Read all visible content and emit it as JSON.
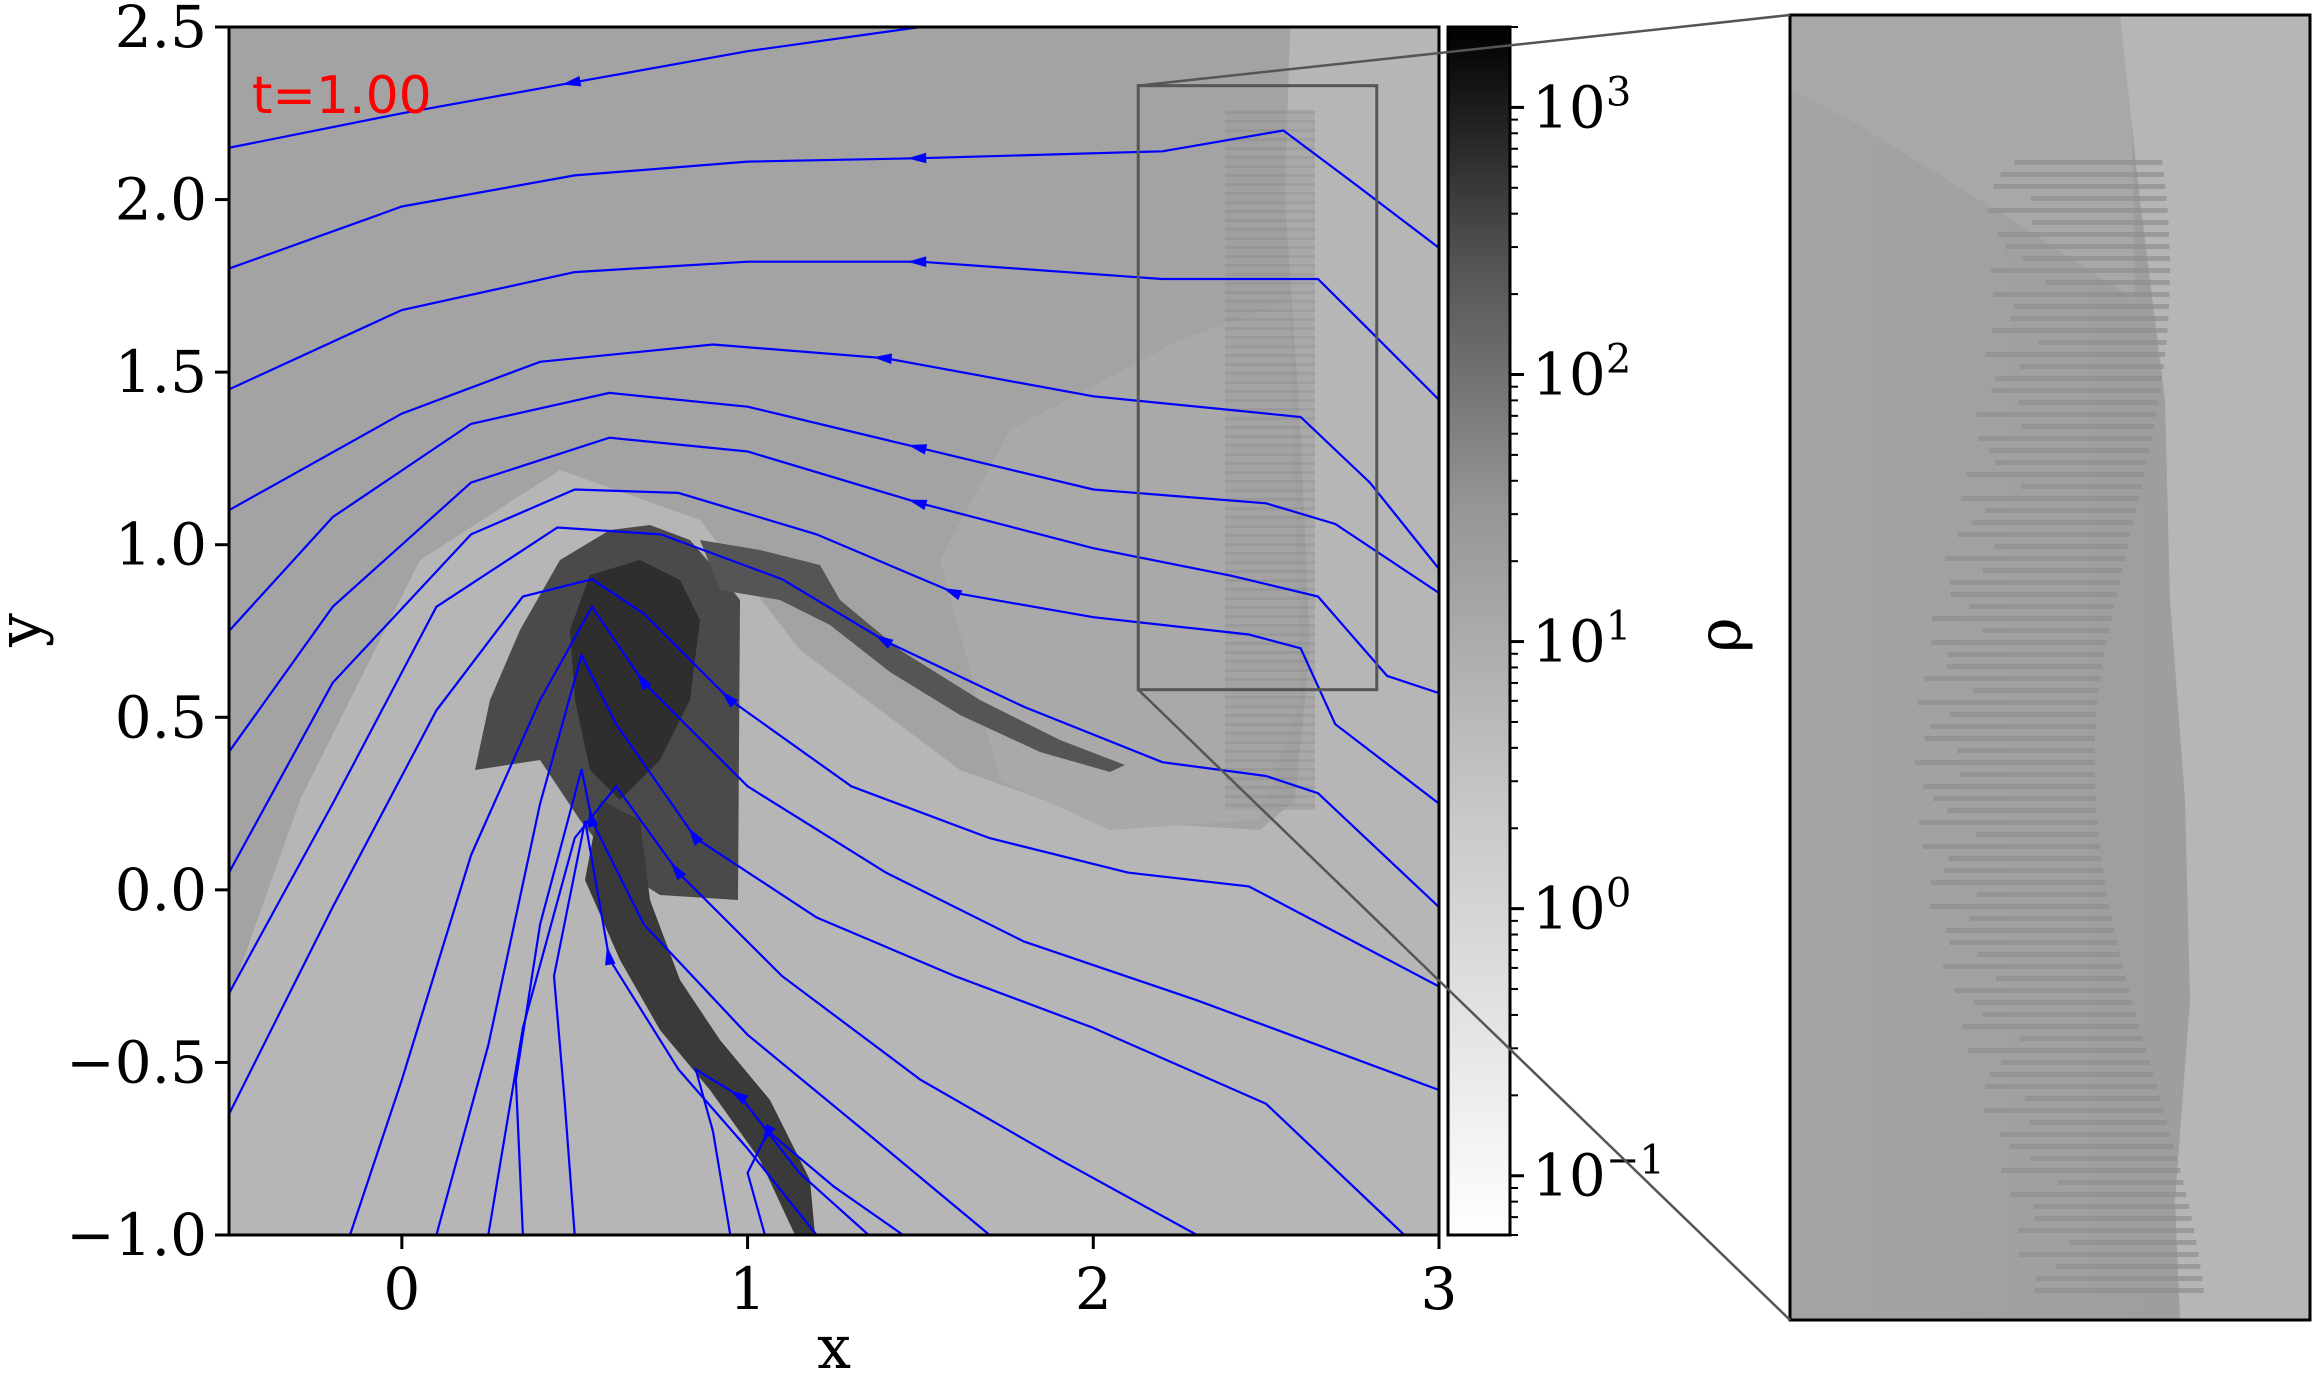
{
  "chart_data": {
    "type": "heatmap",
    "title": "",
    "time_label": "t=1.00",
    "time_label_color": "#ff0000",
    "xlabel": "x",
    "ylabel": "y",
    "xlim": [
      -0.5,
      3.0
    ],
    "ylim": [
      -1.0,
      2.5
    ],
    "xticks": [
      0,
      1,
      2,
      3
    ],
    "xtick_labels": [
      "0",
      "1",
      "2",
      "3"
    ],
    "yticks": [
      -1.0,
      -0.5,
      0.0,
      0.5,
      1.0,
      1.5,
      2.0,
      2.5
    ],
    "ytick_labels": [
      "−1.0",
      "−0.5",
      "0.0",
      "0.5",
      "1.0",
      "1.5",
      "2.0",
      "2.5"
    ],
    "colorbar": {
      "label": "ρ",
      "scale": "log",
      "range": [
        0.06,
        2000
      ],
      "ticks": [
        0.1,
        1,
        10,
        100,
        1000
      ],
      "tick_bases": [
        "10",
        "10",
        "10",
        "10",
        "10"
      ],
      "tick_exponents": [
        "−1",
        "0",
        "1",
        "2",
        "3"
      ],
      "colormap": "Greys"
    },
    "streamline_color": "#0000ff",
    "streamlines": [
      [
        [
          -0.5,
          2.15
        ],
        [
          0.0,
          2.25
        ],
        [
          0.5,
          2.34
        ],
        [
          1.0,
          2.43
        ],
        [
          1.5,
          2.5
        ]
      ],
      [
        [
          -0.5,
          1.8
        ],
        [
          0.0,
          1.98
        ],
        [
          0.5,
          2.07
        ],
        [
          1.0,
          2.11
        ],
        [
          1.5,
          2.12
        ],
        [
          2.2,
          2.14
        ],
        [
          2.55,
          2.2
        ],
        [
          2.75,
          2.05
        ],
        [
          3.0,
          1.86
        ]
      ],
      [
        [
          -0.5,
          1.45
        ],
        [
          0.0,
          1.68
        ],
        [
          0.5,
          1.79
        ],
        [
          1.0,
          1.82
        ],
        [
          1.5,
          1.82
        ],
        [
          2.2,
          1.77
        ],
        [
          2.65,
          1.77
        ],
        [
          2.8,
          1.62
        ],
        [
          3.0,
          1.42
        ]
      ],
      [
        [
          -0.5,
          1.1
        ],
        [
          0.0,
          1.38
        ],
        [
          0.4,
          1.53
        ],
        [
          0.9,
          1.58
        ],
        [
          1.4,
          1.54
        ],
        [
          2.0,
          1.43
        ],
        [
          2.6,
          1.37
        ],
        [
          2.8,
          1.18
        ],
        [
          3.0,
          0.93
        ]
      ],
      [
        [
          -0.5,
          0.75
        ],
        [
          -0.2,
          1.08
        ],
        [
          0.2,
          1.35
        ],
        [
          0.6,
          1.44
        ],
        [
          1.0,
          1.4
        ],
        [
          1.5,
          1.28
        ],
        [
          2.0,
          1.16
        ],
        [
          2.5,
          1.12
        ],
        [
          2.7,
          1.06
        ],
        [
          3.0,
          0.86
        ]
      ],
      [
        [
          -0.5,
          0.4
        ],
        [
          -0.2,
          0.82
        ],
        [
          0.2,
          1.18
        ],
        [
          0.6,
          1.31
        ],
        [
          1.0,
          1.27
        ],
        [
          1.5,
          1.12
        ],
        [
          2.0,
          0.99
        ],
        [
          2.4,
          0.91
        ],
        [
          2.65,
          0.85
        ],
        [
          2.85,
          0.62
        ],
        [
          3.0,
          0.57
        ]
      ],
      [
        [
          -0.5,
          0.05
        ],
        [
          -0.2,
          0.6
        ],
        [
          0.2,
          1.03
        ],
        [
          0.5,
          1.16
        ],
        [
          0.8,
          1.15
        ],
        [
          1.2,
          1.03
        ],
        [
          1.6,
          0.86
        ],
        [
          2.0,
          0.79
        ],
        [
          2.45,
          0.74
        ],
        [
          2.6,
          0.7
        ],
        [
          2.7,
          0.48
        ],
        [
          3.0,
          0.25
        ]
      ],
      [
        [
          -0.5,
          -0.3
        ],
        [
          -0.2,
          0.25
        ],
        [
          0.1,
          0.82
        ],
        [
          0.45,
          1.05
        ],
        [
          0.75,
          1.03
        ],
        [
          1.1,
          0.9
        ],
        [
          1.4,
          0.72
        ],
        [
          1.8,
          0.53
        ],
        [
          2.2,
          0.37
        ],
        [
          2.5,
          0.33
        ],
        [
          2.65,
          0.28
        ],
        [
          3.0,
          -0.05
        ]
      ],
      [
        [
          -0.5,
          -0.65
        ],
        [
          -0.2,
          -0.05
        ],
        [
          0.1,
          0.52
        ],
        [
          0.35,
          0.85
        ],
        [
          0.55,
          0.9
        ],
        [
          0.7,
          0.8
        ],
        [
          0.95,
          0.55
        ],
        [
          1.3,
          0.3
        ],
        [
          1.7,
          0.15
        ],
        [
          2.1,
          0.05
        ],
        [
          2.45,
          0.01
        ],
        [
          3.0,
          -0.28
        ]
      ],
      [
        [
          -0.15,
          -1.0
        ],
        [
          0.0,
          -0.55
        ],
        [
          0.2,
          0.1
        ],
        [
          0.4,
          0.55
        ],
        [
          0.55,
          0.82
        ],
        [
          0.7,
          0.6
        ],
        [
          1.0,
          0.3
        ],
        [
          1.4,
          0.05
        ],
        [
          1.8,
          -0.15
        ],
        [
          2.3,
          -0.32
        ],
        [
          3.0,
          -0.58
        ]
      ],
      [
        [
          0.1,
          -1.0
        ],
        [
          0.25,
          -0.45
        ],
        [
          0.4,
          0.25
        ],
        [
          0.52,
          0.68
        ],
        [
          0.62,
          0.48
        ],
        [
          0.85,
          0.15
        ],
        [
          1.2,
          -0.08
        ],
        [
          1.6,
          -0.25
        ],
        [
          2.0,
          -0.4
        ],
        [
          2.5,
          -0.62
        ],
        [
          2.9,
          -1.0
        ]
      ],
      [
        [
          0.25,
          -1.0
        ],
        [
          0.35,
          -0.4
        ],
        [
          0.5,
          0.15
        ],
        [
          0.62,
          0.3
        ],
        [
          0.8,
          0.05
        ],
        [
          1.1,
          -0.25
        ],
        [
          1.5,
          -0.55
        ],
        [
          1.9,
          -0.78
        ],
        [
          2.3,
          -1.0
        ]
      ],
      [
        [
          0.35,
          -1.0
        ],
        [
          0.33,
          -0.55
        ],
        [
          0.4,
          -0.1
        ],
        [
          0.52,
          0.35
        ],
        [
          0.55,
          0.2
        ],
        [
          0.7,
          -0.1
        ],
        [
          1.0,
          -0.42
        ],
        [
          1.4,
          -0.75
        ],
        [
          1.7,
          -1.0
        ]
      ],
      [
        [
          0.5,
          -1.0
        ],
        [
          0.47,
          -0.6
        ],
        [
          0.44,
          -0.25
        ],
        [
          0.53,
          0.2
        ],
        [
          0.6,
          -0.2
        ],
        [
          0.8,
          -0.52
        ],
        [
          1.0,
          -0.75
        ],
        [
          1.2,
          -1.0
        ]
      ],
      [
        [
          0.95,
          -1.0
        ],
        [
          0.9,
          -0.7
        ],
        [
          0.85,
          -0.52
        ],
        [
          0.98,
          -0.6
        ],
        [
          1.15,
          -0.82
        ],
        [
          1.35,
          -1.0
        ]
      ],
      [
        [
          1.05,
          -1.0
        ],
        [
          1.0,
          -0.82
        ],
        [
          1.06,
          -0.7
        ],
        [
          1.25,
          -0.86
        ],
        [
          1.45,
          -1.0
        ]
      ]
    ],
    "zoom_region": {
      "x": [
        2.13,
        2.82
      ],
      "y": [
        0.58,
        2.33
      ]
    },
    "inset_description": "zoomed density field of the rectangular region"
  }
}
